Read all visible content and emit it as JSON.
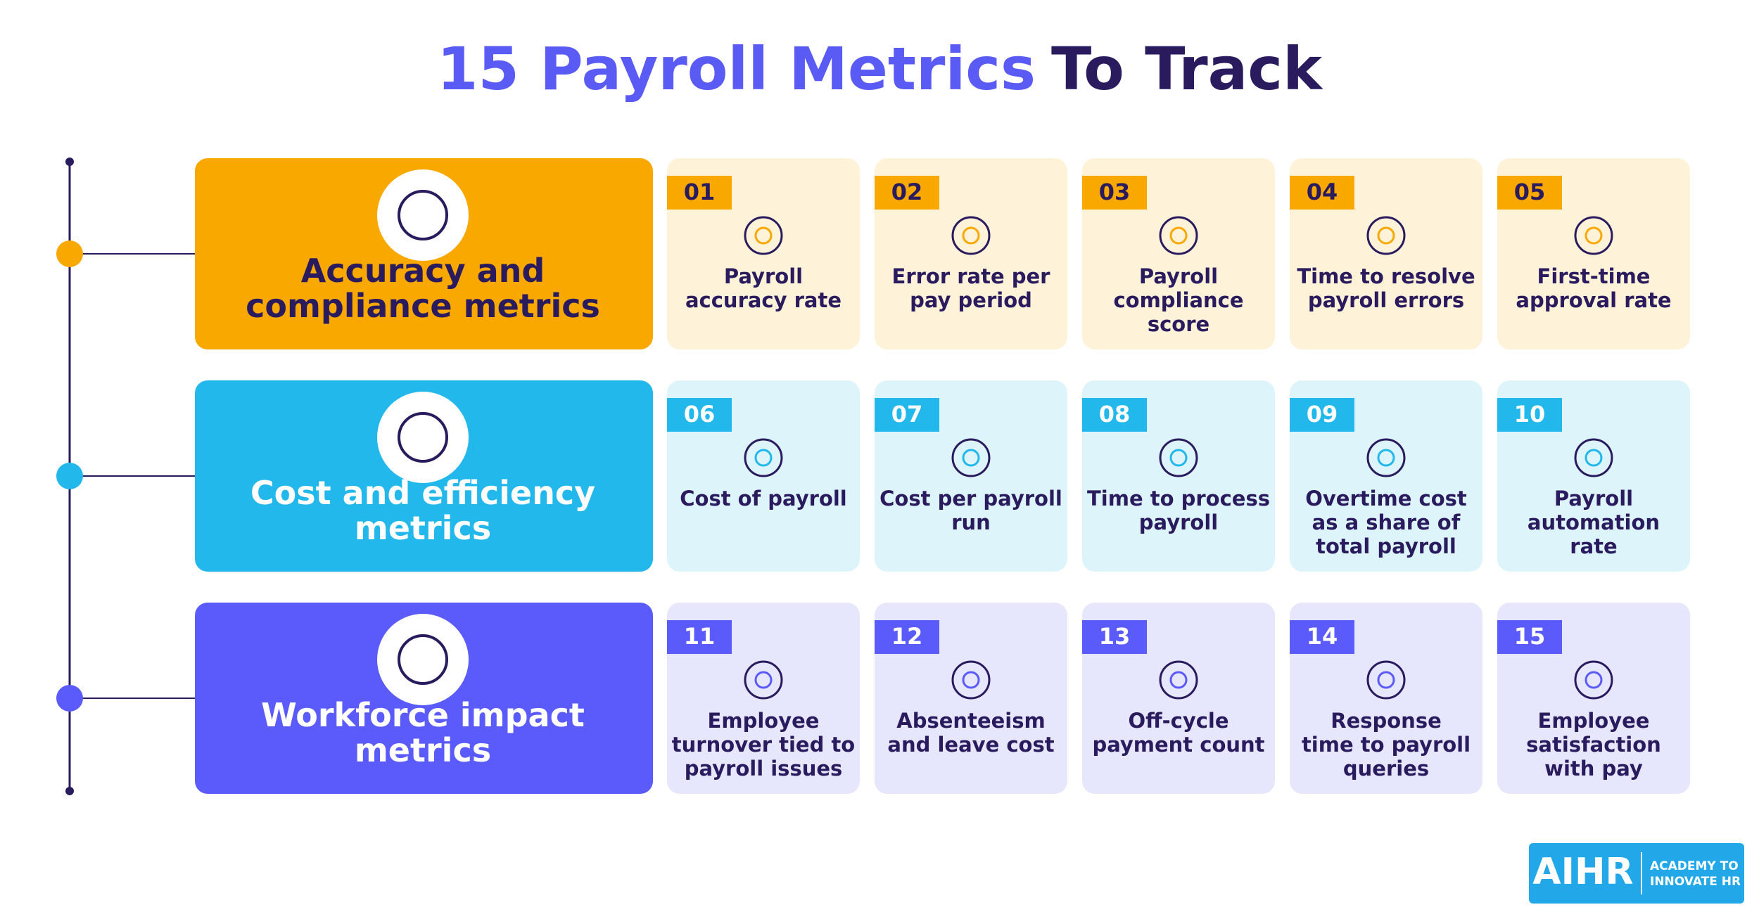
{
  "title": {
    "highlight": "15 Payroll Metrics",
    "rest": "To Track"
  },
  "rows": [
    {
      "label": [
        "Accuracy and",
        "compliance metrics"
      ],
      "metrics": [
        {
          "number": "01",
          "label": [
            "Payroll",
            "accuracy rate"
          ]
        },
        {
          "number": "02",
          "label": [
            "Error rate per",
            "pay period"
          ]
        },
        {
          "number": "03",
          "label": [
            "Payroll",
            "compliance",
            "score"
          ]
        },
        {
          "number": "04",
          "label": [
            "Time to resolve",
            "payroll errors"
          ]
        },
        {
          "number": "05",
          "label": [
            "First-time",
            "approval rate"
          ]
        }
      ]
    },
    {
      "label": [
        "Cost and efficiency",
        "metrics"
      ],
      "metrics": [
        {
          "number": "06",
          "label": [
            "Cost of payroll"
          ]
        },
        {
          "number": "07",
          "label": [
            "Cost per payroll",
            "run"
          ]
        },
        {
          "number": "08",
          "label": [
            "Time to process",
            "payroll"
          ]
        },
        {
          "number": "09",
          "label": [
            "Overtime cost",
            "as a share of",
            "total payroll"
          ]
        },
        {
          "number": "10",
          "label": [
            "Payroll",
            "automation",
            "rate"
          ]
        }
      ]
    },
    {
      "label": [
        "Workforce impact",
        "metrics"
      ],
      "metrics": [
        {
          "number": "11",
          "label": [
            "Employee",
            "turnover tied to",
            "payroll issues"
          ]
        },
        {
          "number": "12",
          "label": [
            "Absenteeism",
            "and leave cost"
          ]
        },
        {
          "number": "13",
          "label": [
            "Off-cycle",
            "payment count"
          ]
        },
        {
          "number": "14",
          "label": [
            "Response",
            "time to payroll",
            "queries"
          ]
        },
        {
          "number": "15",
          "label": [
            "Employee",
            "satisfaction",
            "with pay"
          ]
        }
      ]
    }
  ],
  "logo": {
    "mark": "AIHR",
    "text": [
      "ACADEMY TO",
      "INNOVATE HR"
    ]
  }
}
